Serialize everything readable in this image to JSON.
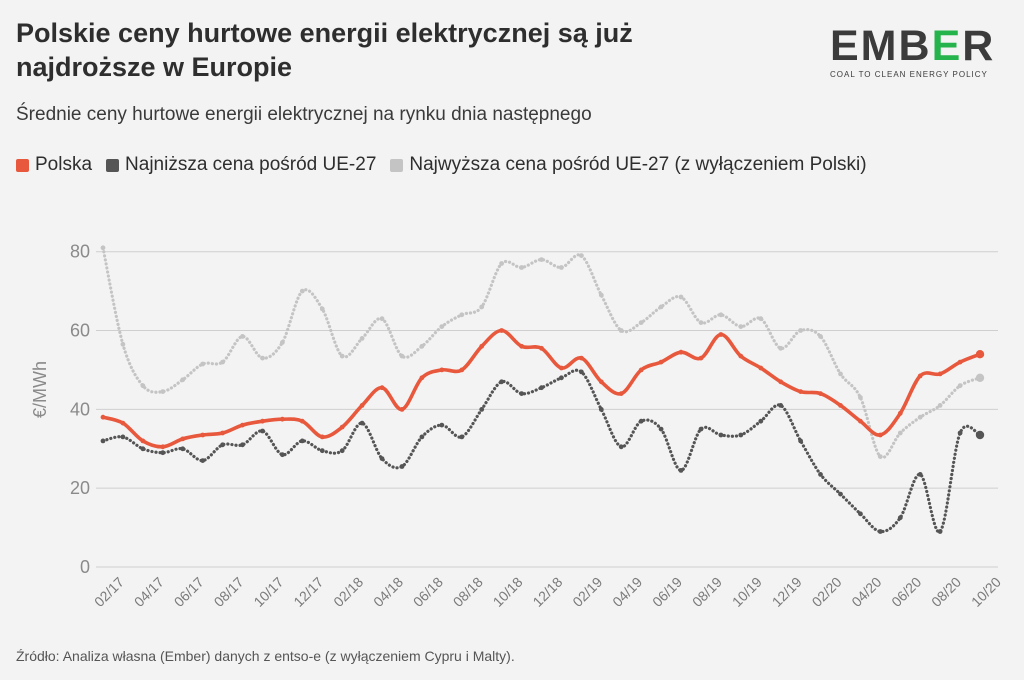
{
  "title": "Polskie ceny hurtowe energii elektrycznej są już najdroższe w Europie",
  "subtitle": "Średnie ceny hurtowe energii elektrycznej na rynku dnia następnego",
  "source": "Źródło: Analiza własna (Ember) danych z entso-e (z wyłączeniem Cypru i Malty).",
  "logo": {
    "word_prefix": "EMB",
    "word_e": "E",
    "word_suffix": "R",
    "tagline": "COAL TO CLEAN ENERGY POLICY"
  },
  "colors": {
    "polska": "#e8583d",
    "min": "#555555",
    "max": "#c4c4c4",
    "grid": "#cfcfcf",
    "logo_green": "#25b34b"
  },
  "chart_data": {
    "type": "line",
    "ylabel": "€/MWh",
    "ylim": [
      0,
      85
    ],
    "yticks": [
      0,
      20,
      40,
      60,
      80
    ],
    "grid": true,
    "legend_position": "top-left",
    "x_tick_labels": [
      "02/17",
      "04/17",
      "06/17",
      "08/17",
      "10/17",
      "12/17",
      "02/18",
      "04/18",
      "06/18",
      "08/18",
      "10/18",
      "12/18",
      "02/19",
      "04/19",
      "06/19",
      "08/19",
      "10/19",
      "12/19",
      "02/20",
      "04/20",
      "06/20",
      "08/20",
      "10/20"
    ],
    "x": [
      "01/17",
      "02/17",
      "03/17",
      "04/17",
      "05/17",
      "06/17",
      "07/17",
      "08/17",
      "09/17",
      "10/17",
      "11/17",
      "12/17",
      "01/18",
      "02/18",
      "03/18",
      "04/18",
      "05/18",
      "06/18",
      "07/18",
      "08/18",
      "09/18",
      "10/18",
      "11/18",
      "12/18",
      "01/19",
      "02/19",
      "03/19",
      "04/19",
      "05/19",
      "06/19",
      "07/19",
      "08/19",
      "09/19",
      "10/19",
      "11/19",
      "12/19",
      "01/20",
      "02/20",
      "03/20",
      "04/20",
      "05/20",
      "06/20",
      "07/20",
      "08/20",
      "09/20"
    ],
    "series": [
      {
        "name": "Polska",
        "color": "#e8583d",
        "style": "solid",
        "values": [
          38,
          36.5,
          32,
          30.5,
          32.5,
          33.5,
          34,
          36,
          37,
          37.5,
          37,
          33,
          35.5,
          41,
          45.5,
          40,
          48,
          50,
          50,
          56,
          60,
          56,
          55.5,
          50.5,
          53,
          47,
          44,
          50,
          52,
          54.5,
          53,
          59,
          53.5,
          50.5,
          47,
          44.5,
          44,
          41,
          37,
          33.5,
          39,
          48.5,
          49,
          52,
          54
        ]
      },
      {
        "name": "Najniższa cena pośród UE-27",
        "color": "#555555",
        "style": "dotted",
        "values": [
          32,
          33,
          30,
          29,
          30,
          27,
          31,
          31,
          34.5,
          28.5,
          32,
          29.5,
          29.5,
          36.5,
          27.5,
          25.5,
          33,
          36,
          33,
          40,
          47,
          44,
          45.5,
          48,
          49.5,
          40,
          30.5,
          37,
          35,
          24.5,
          35,
          33.5,
          33.5,
          37,
          41,
          32,
          23.5,
          18.5,
          13.5,
          9,
          12.5,
          23.5,
          9,
          34,
          33.5
        ]
      },
      {
        "name": "Najwyższa cena pośród UE-27 (z wyłączeniem Polski)",
        "color": "#c4c4c4",
        "style": "dotted",
        "values": [
          81,
          56.5,
          46,
          44.5,
          47.5,
          51.5,
          52,
          58.5,
          53,
          57,
          70,
          65.5,
          53.5,
          58,
          63,
          53.5,
          56,
          61,
          64,
          66,
          77,
          76,
          78,
          76,
          79,
          69,
          60,
          62,
          66,
          68.5,
          62,
          64,
          61,
          63,
          55.5,
          60,
          58.5,
          49,
          43,
          28,
          34,
          38,
          41,
          46,
          48
        ]
      }
    ]
  }
}
